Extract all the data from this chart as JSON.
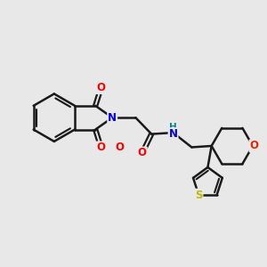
{
  "background_color": "#e8e8e8",
  "bond_color": "#1a1a1a",
  "bond_width": 1.8,
  "atom_colors": {
    "N": "#0000ee",
    "O": "#ff0000",
    "O_ether": "#ee2200",
    "S": "#bbbb00",
    "NH": "#008888"
  },
  "font_size": 8.5,
  "font_size_H": 7.5,
  "figsize": [
    3.0,
    3.0
  ],
  "dpi": 100
}
